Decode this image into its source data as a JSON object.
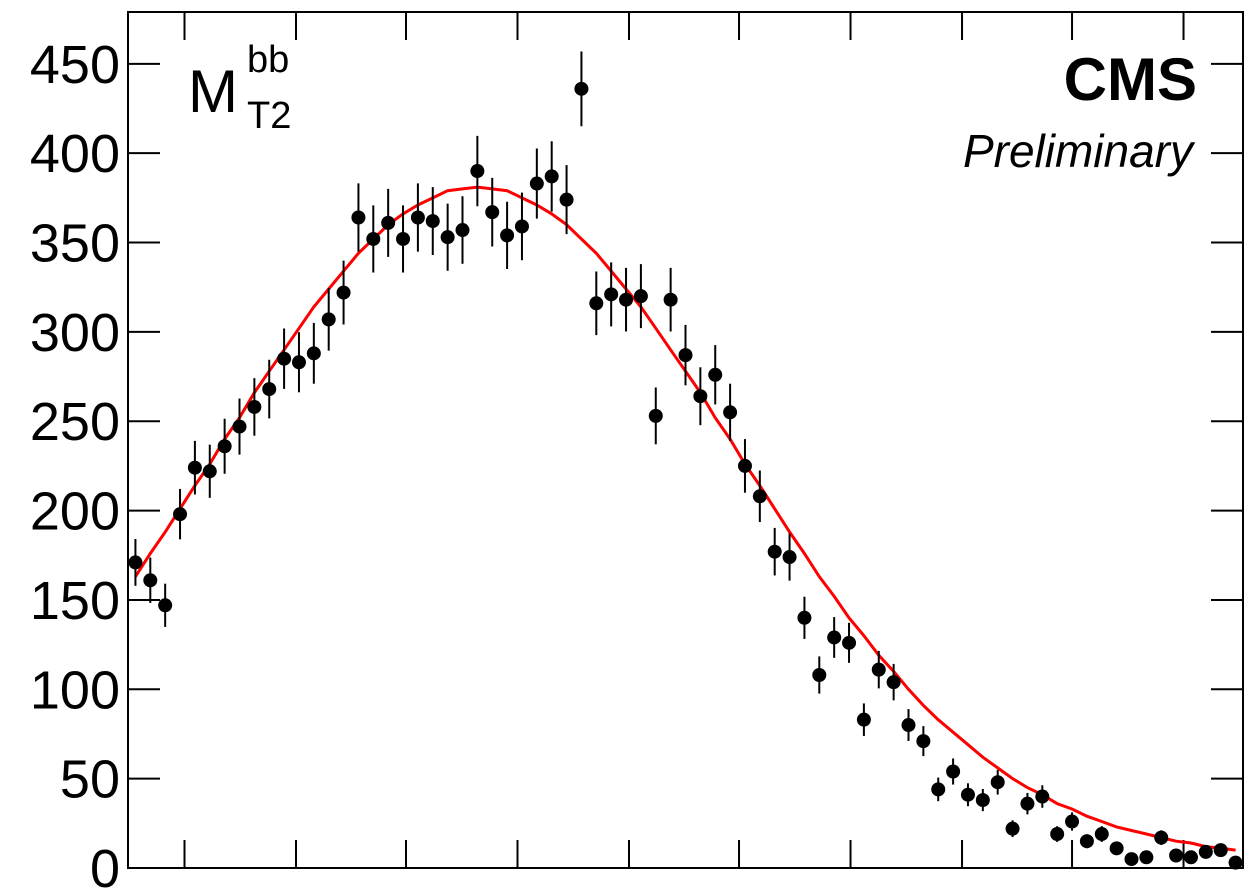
{
  "chart_data": {
    "type": "errorbar",
    "label_main": "M",
    "label_sub": "T2",
    "label_sup": "bb",
    "experiment": "CMS",
    "status": "Preliminary",
    "color": "#000000",
    "x": [
      1,
      2,
      3,
      4,
      5,
      6,
      7,
      8,
      9,
      10,
      11,
      12,
      13,
      14,
      15,
      16,
      17,
      18,
      19,
      20,
      21,
      22,
      23,
      24,
      25,
      26,
      27,
      28,
      29,
      30,
      31,
      32,
      33,
      34,
      35,
      36,
      37,
      38,
      39,
      40,
      41,
      42,
      43,
      44,
      45,
      46,
      47,
      48,
      49,
      50,
      51,
      52,
      53,
      54,
      55,
      56,
      57,
      58,
      59,
      60,
      61,
      62,
      63,
      64,
      65,
      66,
      67,
      68,
      69,
      70,
      71,
      72,
      73,
      74,
      75
    ],
    "values": [
      171,
      161,
      147,
      198,
      224,
      222,
      236,
      247,
      258,
      268,
      285,
      283,
      288,
      307,
      322,
      364,
      352,
      361,
      352,
      364,
      362,
      353,
      357,
      390,
      367,
      354,
      359,
      383,
      387,
      374,
      436,
      316,
      321,
      318,
      320,
      253,
      318,
      287,
      264,
      276,
      255,
      225,
      208,
      177,
      174,
      140,
      108,
      129,
      126,
      83,
      111,
      104,
      80,
      71,
      44,
      54,
      41,
      38,
      48,
      22,
      36,
      40,
      19,
      26,
      15,
      19,
      11,
      5,
      6,
      17,
      7,
      6,
      9,
      10,
      3
    ],
    "errors": [
      13.1,
      12.7,
      12.1,
      14.1,
      15.0,
      14.9,
      15.4,
      15.7,
      16.1,
      16.4,
      16.9,
      16.8,
      17.0,
      17.5,
      17.9,
      19.1,
      18.8,
      19.0,
      18.8,
      19.1,
      19.0,
      18.8,
      18.9,
      19.7,
      19.2,
      18.8,
      18.9,
      19.6,
      19.7,
      19.3,
      20.9,
      17.8,
      17.9,
      17.8,
      17.9,
      15.9,
      17.8,
      16.9,
      16.2,
      16.6,
      16.0,
      15.0,
      14.4,
      13.3,
      13.2,
      11.8,
      10.4,
      11.4,
      11.2,
      9.1,
      10.5,
      10.2,
      8.9,
      8.4,
      6.6,
      7.3,
      6.4,
      6.2,
      6.9,
      4.7,
      6.0,
      6.3,
      4.4,
      5.1,
      3.9,
      4.4,
      3.3,
      2.2,
      2.4,
      4.1,
      2.6,
      2.4,
      3.0,
      3.2,
      1.7
    ],
    "fit": {
      "color": "#ff0000",
      "values": [
        163,
        176,
        188,
        201,
        214,
        226,
        240,
        252,
        266,
        278,
        290,
        302,
        314,
        324,
        334,
        344,
        352,
        360,
        366,
        371,
        375,
        379,
        380,
        381,
        380,
        379,
        375,
        371,
        366,
        360,
        352,
        344,
        334,
        324,
        314,
        302,
        290,
        278,
        266,
        252,
        240,
        226,
        214,
        201,
        188,
        176,
        163,
        152,
        140,
        130,
        119,
        110,
        100,
        91,
        83,
        76,
        69,
        62,
        56,
        50,
        45,
        41,
        36,
        33,
        29,
        26,
        23,
        21,
        19,
        17,
        15,
        14,
        12,
        11,
        10
      ]
    },
    "xlim": [
      0.5,
      75.5
    ],
    "xticks": [
      4.3,
      11.8,
      19.2,
      26.7,
      34.2,
      41.6,
      49.1,
      56.6,
      64.0,
      71.5
    ],
    "ylim": [
      0,
      479
    ],
    "yticks": [
      0,
      50,
      100,
      150,
      200,
      250,
      300,
      350,
      400,
      450
    ]
  }
}
